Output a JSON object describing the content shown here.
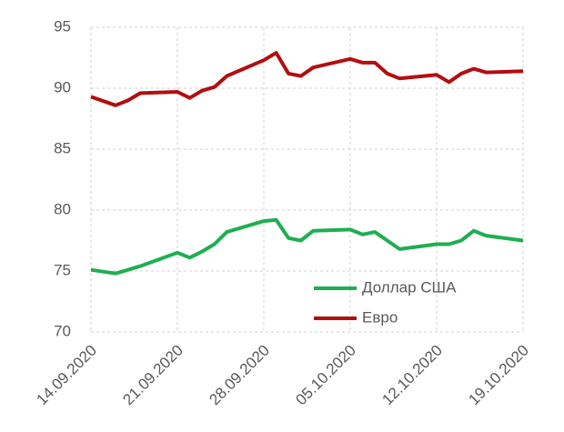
{
  "chart_data": {
    "type": "line",
    "x": [
      "14.09.2020",
      "16.09.2020",
      "17.09.2020",
      "18.09.2020",
      "21.09.2020",
      "22.09.2020",
      "23.09.2020",
      "24.09.2020",
      "25.09.2020",
      "28.09.2020",
      "29.09.2020",
      "30.09.2020",
      "01.10.2020",
      "02.10.2020",
      "05.10.2020",
      "06.10.2020",
      "07.10.2020",
      "08.10.2020",
      "09.10.2020",
      "12.10.2020",
      "13.10.2020",
      "14.10.2020",
      "15.10.2020",
      "16.10.2020",
      "19.10.2020"
    ],
    "series": [
      {
        "name": "Доллар США",
        "color": "#1fae51",
        "values": [
          75.1,
          74.8,
          75.1,
          75.4,
          76.5,
          76.1,
          76.6,
          77.2,
          78.2,
          79.1,
          79.2,
          77.7,
          77.5,
          78.3,
          78.4,
          78.0,
          78.2,
          77.5,
          76.8,
          77.2,
          77.2,
          77.5,
          78.3,
          77.9,
          77.5
        ]
      },
      {
        "name": "Евро",
        "color": "#b20e10",
        "values": [
          89.3,
          88.6,
          89.0,
          89.6,
          89.7,
          89.2,
          89.8,
          90.1,
          91.0,
          92.3,
          92.9,
          91.2,
          91.0,
          91.7,
          92.4,
          92.1,
          92.1,
          91.2,
          90.8,
          91.1,
          90.5,
          91.2,
          91.6,
          91.3,
          91.4
        ]
      }
    ],
    "xlim": [
      "14.09.2020",
      "19.10.2020"
    ],
    "xticks": [
      "14.09.2020",
      "21.09.2020",
      "28.09.2020",
      "05.10.2020",
      "12.10.2020",
      "19.10.2020"
    ],
    "ylim": [
      70,
      95
    ],
    "yticks": [
      70,
      75,
      80,
      85,
      90,
      95
    ],
    "grid": true,
    "legend": "lower right"
  }
}
